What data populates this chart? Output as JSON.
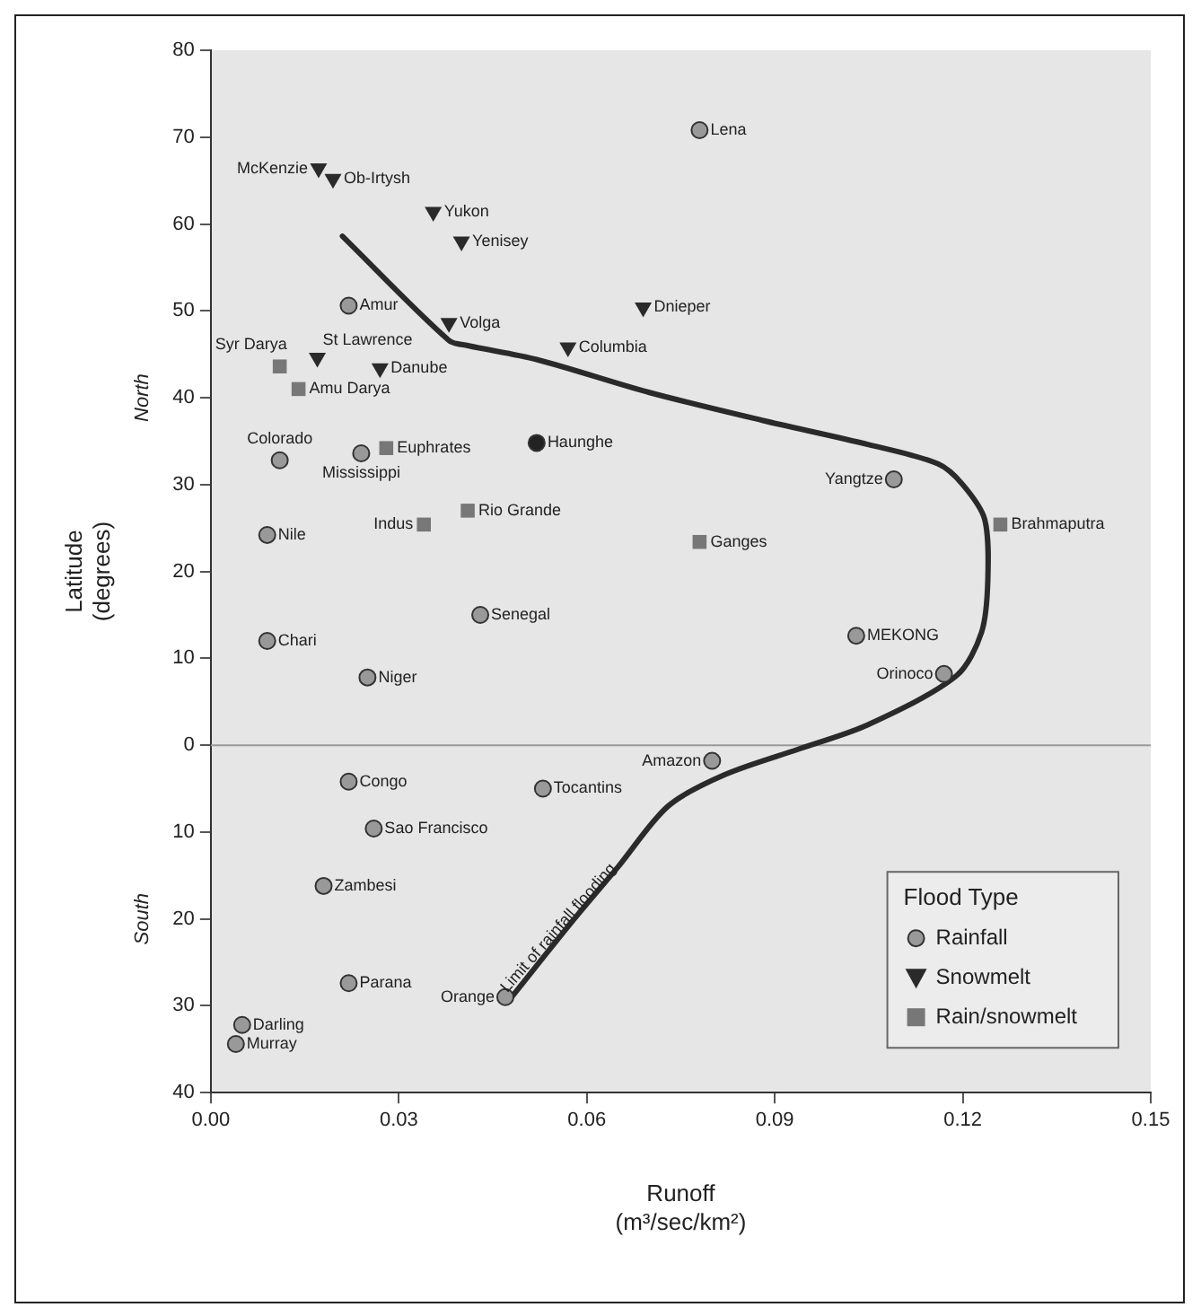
{
  "chart_data": {
    "type": "scatter",
    "xlabel": "Runoff\n(m³/sec/km²)",
    "ylabel": "Latitude\n(degrees)",
    "legend_title": "Flood Type",
    "legend": "bottom right",
    "grid": false,
    "xlim": [
      0,
      0.15
    ],
    "xticks": [
      {
        "value": 0,
        "label": "0.00"
      },
      0.03,
      0.06,
      0.09,
      0.12,
      0.15
    ],
    "ylim": [
      -40,
      80
    ],
    "yticks": [
      80,
      70,
      60,
      50,
      40,
      30,
      20,
      10,
      0,
      {
        "value": -10,
        "label": "10"
      },
      {
        "value": -20,
        "label": "20"
      },
      {
        "value": -30,
        "label": "30"
      },
      {
        "value": -40,
        "label": "40"
      }
    ],
    "ref_lines": [
      {
        "axis": "y",
        "value": 0,
        "color": "#999999"
      }
    ],
    "series": [
      {
        "name": "Rainfall",
        "marker": "circle",
        "color": "#999999",
        "colors": [
          "#999999",
          "#999999",
          "#222222",
          "#999999",
          "#999999",
          "#999999",
          "#999999",
          "#999999",
          "#999999",
          "#999999",
          "#999999",
          "#999999",
          "#999999",
          "#999999",
          "#999999",
          "#999999",
          "#999999",
          "#999999",
          "#999999",
          "#999999",
          "#999999"
        ],
        "x": [
          0.078,
          0.022,
          0.052,
          0.011,
          0.024,
          0.009,
          0.109,
          0.043,
          0.009,
          0.025,
          0.103,
          0.117,
          0.08,
          0.022,
          0.053,
          0.026,
          0.018,
          0.022,
          0.047,
          0.005,
          0.004
        ],
        "values": [
          70.8,
          50.6,
          34.8,
          32.8,
          33.6,
          24.2,
          30.6,
          15,
          12,
          7.8,
          12.6,
          8.2,
          -1.8,
          -4.2,
          -5,
          -9.6,
          -16.2,
          -27.4,
          -29,
          -32.2,
          -34.4
        ]
      },
      {
        "name": "Snowmelt",
        "marker": "triangle",
        "color": "#2a2a2a",
        "x": [
          0.0172,
          0.0195,
          0.0355,
          0.04,
          0.038,
          0.069,
          0.057,
          0.017,
          0.027
        ],
        "values": [
          66.4,
          65.2,
          61.4,
          58,
          48.6,
          50.4,
          45.8,
          44.6,
          43.4
        ]
      },
      {
        "name": "Rain/snowmelt",
        "marker": "square",
        "color": "#777777",
        "x": [
          0.011,
          0.014,
          0.028,
          0.041,
          0.034,
          0.078,
          0.126
        ],
        "values": [
          43.6,
          41,
          34.2,
          27,
          25.4,
          23.4,
          25.4
        ]
      },
      {
        "type": "line",
        "marker": "none",
        "line_style": "solid",
        "color": "#2a2a2a",
        "x": [
          0.048,
          0.058,
          0.065,
          0.073,
          0.082,
          0.094,
          0.105,
          0.119,
          0.123,
          0.124,
          0.1235,
          0.12,
          0.116,
          0.105,
          0.088,
          0.07,
          0.052,
          0.041,
          0.038,
          0.021
        ],
        "values": [
          -29,
          -20,
          -14,
          -7,
          -3.4,
          -0.4,
          2.4,
          8,
          13,
          19,
          26,
          30,
          32.4,
          34.6,
          37.4,
          40.6,
          44.4,
          46,
          46.6,
          58.6
        ]
      }
    ],
    "annotations": [
      {
        "text": "Syr Darya",
        "x": 0.011,
        "y": 43.6
      },
      {
        "text": "Lena",
        "x": 0.078,
        "y": 70.8
      },
      {
        "text": "Amur",
        "x": 0.022,
        "y": 50.6
      },
      {
        "text": "Haunghe",
        "x": 0.052,
        "y": 34.8
      },
      {
        "text": "Colorado",
        "x": 0.011,
        "y": 32.8
      },
      {
        "text": "Mississippi",
        "x": 0.024,
        "y": 33.6
      },
      {
        "text": "Nile",
        "x": 0.009,
        "y": 24.2
      },
      {
        "text": "Yangtze",
        "x": 0.109,
        "y": 30.6
      },
      {
        "text": "Senegal",
        "x": 0.043,
        "y": 15
      },
      {
        "text": "Chari",
        "x": 0.009,
        "y": 12
      },
      {
        "text": "Niger",
        "x": 0.025,
        "y": 7.8
      },
      {
        "text": "MEKONG",
        "x": 0.103,
        "y": 12.6
      },
      {
        "text": "Orinoco",
        "x": 0.117,
        "y": 8.2
      },
      {
        "text": "Amazon",
        "x": 0.08,
        "y": -1.8
      },
      {
        "text": "Congo",
        "x": 0.022,
        "y": -4.2
      },
      {
        "text": "Tocantins",
        "x": 0.053,
        "y": -5
      },
      {
        "text": "Sao Francisco",
        "x": 0.026,
        "y": -9.6
      },
      {
        "text": "Zambesi",
        "x": 0.018,
        "y": -16.2
      },
      {
        "text": "Parana",
        "x": 0.022,
        "y": -27.4
      },
      {
        "text": "Orange",
        "x": 0.047,
        "y": -29
      },
      {
        "text": "Darling",
        "x": 0.005,
        "y": -32.2
      },
      {
        "text": "Murray",
        "x": 0.004,
        "y": -34.4
      },
      {
        "text": "McKenzie",
        "x": 0.0172,
        "y": 66.4
      },
      {
        "text": "Ob-Irtysh",
        "x": 0.0195,
        "y": 65.2
      },
      {
        "text": "Yukon",
        "x": 0.0355,
        "y": 61.4
      },
      {
        "text": "Yenisey",
        "x": 0.04,
        "y": 58
      },
      {
        "text": "Volga",
        "x": 0.038,
        "y": 48.6
      },
      {
        "text": "Dnieper",
        "x": 0.069,
        "y": 50.4
      },
      {
        "text": "Columbia",
        "x": 0.057,
        "y": 45.8
      },
      {
        "text": "St Lawrence",
        "x": 0.017,
        "y": 44.6
      },
      {
        "text": "Danube",
        "x": 0.027,
        "y": 43.4
      },
      {
        "text": "Amu Darya",
        "x": 0.014,
        "y": 41
      },
      {
        "text": "Euphrates",
        "x": 0.028,
        "y": 34.2
      },
      {
        "text": "Rio Grande",
        "x": 0.041,
        "y": 27
      },
      {
        "text": "Indus",
        "x": 0.034,
        "y": 25.4
      },
      {
        "text": "Ganges",
        "x": 0.078,
        "y": 23.4
      },
      {
        "text": "Brahmaputra",
        "x": 0.126,
        "y": 25.4
      },
      {
        "text": "Limit of rainfall flooding",
        "x": 0.057,
        "y": -22
      },
      "North",
      "South"
    ]
  }
}
